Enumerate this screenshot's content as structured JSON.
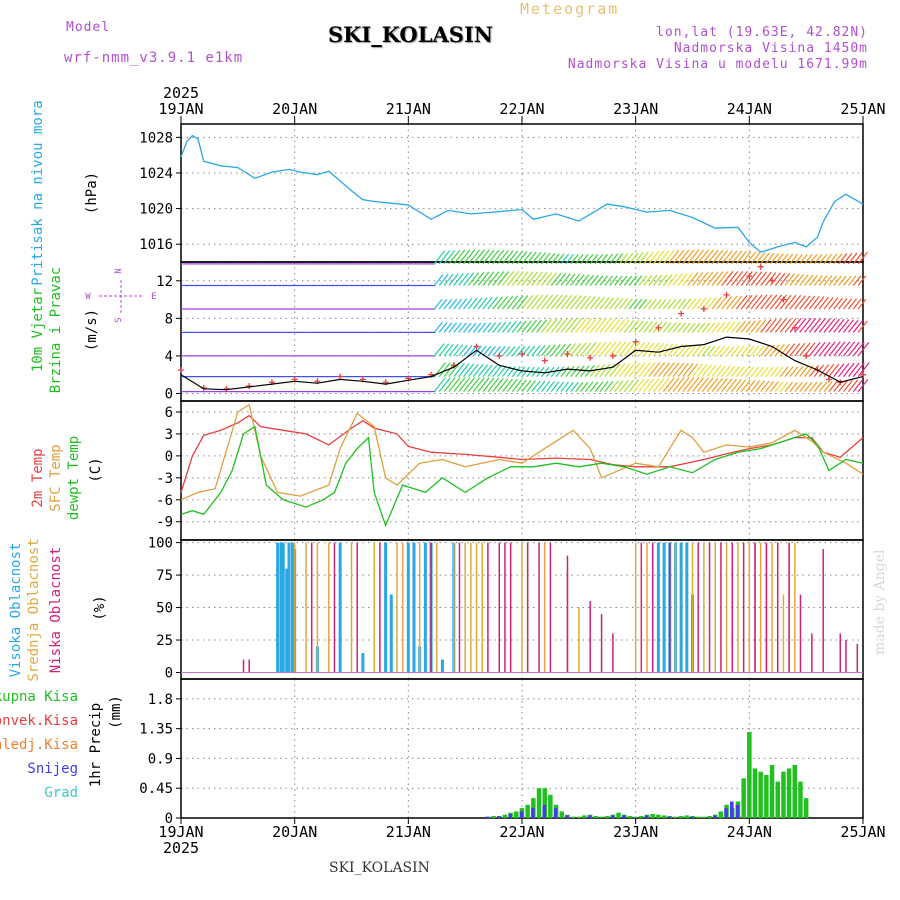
{
  "header": {
    "model_label": "Model",
    "model_name": "wrf-nmm_v3.9.1 e1km",
    "title": "SKI_KOLASIN",
    "subtitle": "Meteogram",
    "location_lonlat": "lon,lat (19.63E, 42.82N)",
    "elevation": "Nadmorska Visina 1450m",
    "model_elevation": "Nadmorska Visina u modelu 1671.99m"
  },
  "footer": {
    "station": "SKI_KOLASIN",
    "credit": "made by Angel"
  },
  "x_axis": {
    "year": "2025",
    "days": [
      "19JAN",
      "20JAN",
      "21JAN",
      "22JAN",
      "23JAN",
      "24JAN",
      "25JAN"
    ]
  },
  "colors": {
    "pressure": "#2aa8e6",
    "temp2m": "#e84040",
    "sfc": "#e0a040",
    "dewpt": "#20c020",
    "high_cloud": "#2aa8e6",
    "mid_cloud": "#e0a840",
    "low_cloud": "#d0207a",
    "total_precip": "#20c020",
    "conv_precip": "#e84040",
    "frz_precip": "#f08030",
    "snow": "#4040e0",
    "graupel": "#40c8c8",
    "label_violet": "#b050d0"
  },
  "chart_data": [
    {
      "type": "line",
      "ylabel_title": "Pritisak na nivou mora",
      "ylabel_unit": "(hPa)",
      "ylim": [
        1014,
        1029.5
      ],
      "yticks": [
        1016,
        1020,
        1024,
        1028
      ],
      "grid": true,
      "series": [
        {
          "x": [
            0,
            0.05,
            0.1,
            0.15,
            0.2,
            0.35,
            0.5,
            0.65,
            0.8,
            0.95,
            1.05,
            1.2,
            1.3,
            1.5,
            1.6,
            1.7,
            1.85,
            2.0,
            2.2,
            2.35,
            2.55,
            2.75,
            3.0,
            3.1,
            3.3,
            3.5,
            3.75,
            3.9,
            4.1,
            4.3,
            4.5,
            4.7,
            4.9,
            5.0,
            5.1,
            5.25,
            5.4,
            5.5,
            5.6,
            5.65,
            5.75,
            5.85,
            6.0
          ],
          "y": [
            1025.8,
            1027.5,
            1028.2,
            1027.8,
            1025.3,
            1024.8,
            1024.6,
            1023.4,
            1024.1,
            1024.4,
            1024.1,
            1023.8,
            1024.2,
            1022.0,
            1021.0,
            1020.8,
            1020.6,
            1020.4,
            1018.8,
            1019.8,
            1019.4,
            1019.6,
            1019.9,
            1018.8,
            1019.4,
            1018.6,
            1020.5,
            1020.2,
            1019.6,
            1019.8,
            1019.0,
            1017.8,
            1017.9,
            1016.2,
            1015.1,
            1015.7,
            1016.2,
            1015.7,
            1016.8,
            1018.5,
            1020.8,
            1021.6,
            1020.5
          ]
        }
      ]
    },
    {
      "type": "line",
      "ylabel_title": "10m Vjetar",
      "ylabel_title2": "Brzina i Pravac",
      "ylabel_unit": "(m/s)",
      "compass": [
        "N",
        "W",
        "E",
        "S"
      ],
      "ylim": [
        -0.8,
        14
      ],
      "yticks": [
        0,
        4,
        8,
        12
      ],
      "grid": true,
      "barb_rows_ms": [
        0.2,
        1.8,
        4,
        6.5,
        9,
        11.5,
        13.8
      ],
      "series": [
        {
          "style": "plus-red",
          "x": [
            0,
            0.2,
            0.4,
            0.6,
            0.8,
            1.0,
            1.2,
            1.4,
            1.6,
            1.8,
            2.0,
            2.2,
            2.4,
            2.6,
            2.8,
            3.0,
            3.2,
            3.4,
            3.6,
            3.8,
            4.0,
            4.2,
            4.4,
            4.6,
            4.8,
            5.0,
            5.1,
            5.2,
            5.3,
            5.4,
            5.5,
            5.6,
            5.7,
            5.8,
            6.0
          ],
          "y": [
            2.5,
            0.6,
            0.5,
            0.8,
            1.2,
            1.5,
            1.3,
            1.8,
            1.5,
            1.2,
            1.6,
            2.0,
            3.0,
            5.0,
            4.0,
            4.2,
            3.5,
            4.2,
            3.8,
            4.0,
            5.5,
            7.0,
            8.5,
            9.0,
            10.5,
            12.5,
            13.5,
            12.0,
            10.0,
            7.0,
            4.0,
            2.5,
            1.5,
            1.2,
            2.0
          ]
        },
        {
          "style": "line-black",
          "x": [
            0,
            0.2,
            0.4,
            0.6,
            0.8,
            1.0,
            1.2,
            1.4,
            1.6,
            1.8,
            2.0,
            2.2,
            2.4,
            2.6,
            2.8,
            3.0,
            3.2,
            3.4,
            3.6,
            3.8,
            4.0,
            4.2,
            4.4,
            4.6,
            4.8,
            5.0,
            5.2,
            5.4,
            5.6,
            5.8,
            6.0
          ],
          "y": [
            2.0,
            0.5,
            0.4,
            0.7,
            1.0,
            1.3,
            1.1,
            1.5,
            1.3,
            1.0,
            1.4,
            1.8,
            2.8,
            4.6,
            3.0,
            2.4,
            2.2,
            2.6,
            2.4,
            2.8,
            4.6,
            4.4,
            5.0,
            5.2,
            6.0,
            5.8,
            5.0,
            3.5,
            2.5,
            1.2,
            1.8
          ]
        }
      ]
    },
    {
      "type": "line",
      "ylabel_title": "2m Temp",
      "ylabel_title2": "SFC Temp",
      "ylabel_title3": "dewpt Temp",
      "ylabel_unit": "(C)",
      "ylim": [
        -11.5,
        7.5
      ],
      "yticks": [
        -9,
        -6,
        -3,
        0,
        3,
        6
      ],
      "grid": true,
      "series": [
        {
          "name": "2m Temp",
          "x": [
            0,
            0.1,
            0.2,
            0.35,
            0.5,
            0.6,
            0.7,
            0.9,
            1.1,
            1.3,
            1.5,
            1.6,
            1.7,
            1.9,
            2.0,
            2.2,
            2.5,
            2.8,
            3.0,
            3.3,
            3.6,
            3.8,
            4.0,
            4.3,
            4.6,
            4.8,
            5.0,
            5.2,
            5.4,
            5.55,
            5.65,
            5.8,
            6.0
          ],
          "y": [
            -5,
            0,
            2.8,
            3.5,
            4.5,
            5.5,
            4.0,
            3.5,
            3.0,
            1.5,
            3.8,
            4.8,
            3.8,
            3.0,
            1.3,
            0.5,
            0.2,
            -0.2,
            -0.5,
            -0.3,
            -0.5,
            -1.2,
            -1.5,
            -1.5,
            -0.5,
            0.3,
            1.0,
            1.5,
            2.5,
            2.5,
            0.5,
            -0.2,
            2.5
          ]
        },
        {
          "name": "SFC Temp",
          "x": [
            0,
            0.15,
            0.3,
            0.5,
            0.6,
            0.7,
            0.85,
            1.05,
            1.3,
            1.4,
            1.55,
            1.7,
            1.8,
            1.9,
            2.1,
            2.3,
            2.5,
            2.8,
            3.0,
            3.2,
            3.45,
            3.6,
            3.7,
            4.0,
            4.2,
            4.4,
            4.5,
            4.6,
            4.8,
            5.0,
            5.2,
            5.4,
            5.55,
            5.65,
            5.85,
            6.0
          ],
          "y": [
            -6,
            -5,
            -4.5,
            6.0,
            7.0,
            0,
            -5,
            -5.5,
            -4,
            1,
            5.8,
            4,
            -3,
            -4,
            -1,
            -0.5,
            -1.5,
            -0.5,
            -1,
            1,
            3.5,
            1,
            -3,
            -1,
            -1.5,
            3.5,
            2.5,
            0.5,
            1.5,
            1.2,
            1.8,
            3.5,
            2,
            0.5,
            -1,
            -2.5
          ]
        },
        {
          "name": "dewpt Temp",
          "x": [
            0,
            0.1,
            0.2,
            0.35,
            0.45,
            0.55,
            0.65,
            0.75,
            0.9,
            1.1,
            1.25,
            1.35,
            1.45,
            1.55,
            1.65,
            1.7,
            1.8,
            1.95,
            2.15,
            2.3,
            2.5,
            2.7,
            2.9,
            3.1,
            3.3,
            3.5,
            3.7,
            3.9,
            4.1,
            4.3,
            4.5,
            4.7,
            4.9,
            5.1,
            5.3,
            5.5,
            5.6,
            5.7,
            5.85,
            6.0
          ],
          "y": [
            -8,
            -7.5,
            -8,
            -5,
            -2,
            3,
            4,
            -4,
            -6,
            -7,
            -6,
            -5,
            -1,
            1,
            2.5,
            -5,
            -9.5,
            -4,
            -5,
            -3,
            -5,
            -3,
            -1.5,
            -1.5,
            -1,
            -1.5,
            -1,
            -1.5,
            -2.5,
            -1.5,
            -2.3,
            -0.5,
            0.5,
            1,
            2,
            3,
            1.5,
            -2,
            -0.5,
            -1
          ]
        }
      ]
    },
    {
      "type": "bar",
      "ylabel_title": "Visoka Oblacnost",
      "ylabel_title2": "Srednja Oblacnost",
      "ylabel_title3": "Niska Oblacnost",
      "ylabel_unit": "(%)",
      "ylim": [
        -5,
        102
      ],
      "yticks": [
        0,
        25,
        50,
        75,
        100
      ],
      "grid": true,
      "series": [
        {
          "name": "Visoka",
          "x": [
            0.85,
            0.88,
            0.9,
            0.93,
            0.95,
            0.98,
            1.0,
            1.2,
            1.4,
            1.6,
            1.8,
            1.85,
            2.0,
            2.05,
            2.1,
            2.15,
            2.2,
            2.3,
            2.4,
            4.2,
            4.25,
            4.3,
            4.35,
            4.4,
            4.45,
            4.5
          ],
          "y": [
            100,
            100,
            100,
            80,
            100,
            100,
            95,
            20,
            100,
            15,
            100,
            60,
            100,
            100,
            20,
            100,
            100,
            10,
            100,
            100,
            100,
            100,
            100,
            100,
            100,
            60
          ]
        },
        {
          "name": "Srednja",
          "x": [
            1.0,
            1.1,
            1.2,
            1.3,
            1.5,
            1.7,
            1.9,
            1.95,
            2.1,
            2.25,
            2.4,
            2.5,
            2.55,
            2.6,
            2.65,
            3.0,
            3.2,
            3.4,
            3.5,
            4.0,
            4.1,
            4.35,
            4.5,
            4.6,
            4.7,
            4.8,
            4.9,
            5.0,
            5.05,
            5.1,
            5.15,
            5.2,
            5.25,
            5.3,
            5.35,
            5.4
          ],
          "y": [
            100,
            100,
            100,
            100,
            100,
            100,
            100,
            100,
            100,
            100,
            100,
            100,
            100,
            100,
            100,
            100,
            100,
            80,
            50,
            100,
            100,
            100,
            100,
            100,
            100,
            100,
            100,
            100,
            100,
            100,
            100,
            100,
            100,
            60,
            100,
            100
          ]
        },
        {
          "name": "Niska",
          "x": [
            0.55,
            0.6,
            1.15,
            1.35,
            1.55,
            1.75,
            2.2,
            2.45,
            2.7,
            2.8,
            2.85,
            2.9,
            3.05,
            3.15,
            3.25,
            3.4,
            3.6,
            3.7,
            3.8,
            4.05,
            4.15,
            4.3,
            4.55,
            4.65,
            4.75,
            4.85,
            4.95,
            5.05,
            5.15,
            5.25,
            5.35,
            5.45,
            5.55,
            5.65,
            5.8,
            5.85,
            5.95
          ],
          "y": [
            10,
            10,
            100,
            100,
            100,
            100,
            100,
            100,
            100,
            100,
            100,
            100,
            100,
            100,
            100,
            90,
            55,
            45,
            30,
            100,
            100,
            100,
            100,
            100,
            100,
            100,
            100,
            100,
            100,
            100,
            100,
            60,
            30,
            95,
            30,
            25,
            22
          ]
        }
      ]
    },
    {
      "type": "bar",
      "ylabel_title": "1hr Precip",
      "ylabel_unit": "(mm)",
      "legend": [
        "Ukupna Kisa",
        "Konvek.Kisa",
        "Zaledj.Kisa",
        "Snijeg",
        "Grad"
      ],
      "ylim": [
        0,
        2.1
      ],
      "yticks": [
        0,
        0.45,
        0.9,
        1.35,
        1.8
      ],
      "ytick_labels": [
        "0",
        "0.45",
        "0.9",
        "1.35",
        "1.8"
      ],
      "grid": true,
      "series": [
        {
          "name": "Ukupna Kisa",
          "x": [
            2.7,
            2.75,
            2.8,
            2.85,
            2.9,
            2.95,
            3.0,
            3.05,
            3.1,
            3.15,
            3.2,
            3.25,
            3.3,
            3.35,
            3.4,
            3.45,
            3.5,
            3.55,
            3.6,
            3.65,
            3.7,
            3.75,
            3.8,
            3.85,
            3.9,
            3.95,
            4.0,
            4.05,
            4.1,
            4.15,
            4.2,
            4.25,
            4.3,
            4.35,
            4.4,
            4.45,
            4.5,
            4.55,
            4.6,
            4.65,
            4.7,
            4.75,
            4.8,
            4.85,
            4.9,
            4.95,
            5.0,
            5.05,
            5.1,
            5.15,
            5.2,
            5.25,
            5.3,
            5.35,
            5.4,
            5.45,
            5.5
          ],
          "y": [
            0.02,
            0.03,
            0.03,
            0.05,
            0.08,
            0.1,
            0.15,
            0.2,
            0.3,
            0.45,
            0.45,
            0.35,
            0.2,
            0.1,
            0.05,
            0.02,
            0.02,
            0.04,
            0.05,
            0.03,
            0.02,
            0.03,
            0.05,
            0.08,
            0.05,
            0.03,
            0.02,
            0.03,
            0.05,
            0.06,
            0.05,
            0.04,
            0.03,
            0.02,
            0.03,
            0.04,
            0.03,
            0.02,
            0.02,
            0.03,
            0.05,
            0.1,
            0.2,
            0.15,
            0.25,
            0.6,
            1.3,
            0.75,
            0.7,
            0.65,
            0.8,
            0.55,
            0.7,
            0.75,
            0.8,
            0.55,
            0.3
          ]
        },
        {
          "name": "Snijeg",
          "x": [
            2.7,
            2.8,
            2.9,
            3.0,
            3.1,
            3.2,
            3.3,
            3.4,
            3.6,
            3.8,
            3.9,
            4.1,
            4.3,
            4.5,
            4.7,
            4.8,
            4.85,
            4.9
          ],
          "y": [
            0.02,
            0.03,
            0.06,
            0.1,
            0.15,
            0.2,
            0.15,
            0.04,
            0.04,
            0.04,
            0.04,
            0.04,
            0.02,
            0.02,
            0.04,
            0.15,
            0.25,
            0.2
          ]
        }
      ]
    }
  ]
}
